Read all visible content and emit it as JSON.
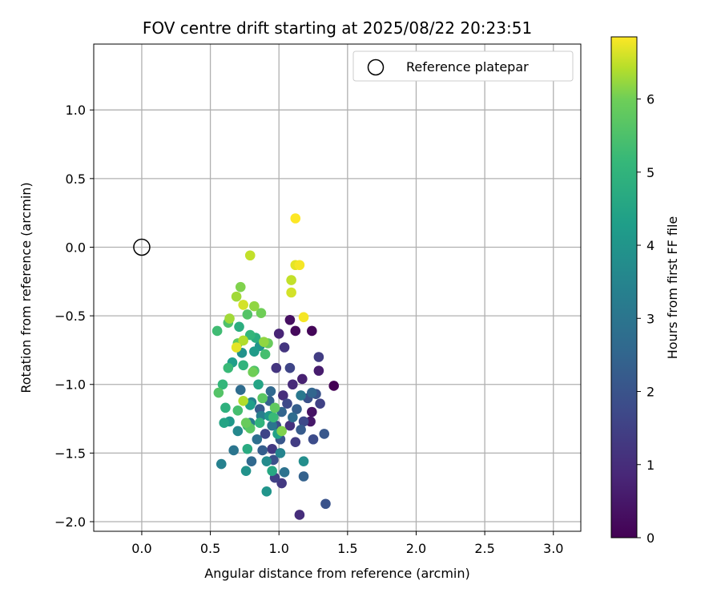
{
  "chart_data": {
    "type": "scatter",
    "title": "FOV centre drift starting at 2025/08/22 20:23:51",
    "xlabel": "Angular distance from reference (arcmin)",
    "ylabel": "Rotation from reference (arcmin)",
    "xlim": [
      -0.35,
      3.2
    ],
    "ylim": [
      -2.07,
      1.48
    ],
    "xticks": [
      0.0,
      0.5,
      1.0,
      1.5,
      2.0,
      2.5,
      3.0
    ],
    "xtick_labels": [
      "0.0",
      "0.5",
      "1.0",
      "1.5",
      "2.0",
      "2.5",
      "3.0"
    ],
    "yticks": [
      1.0,
      0.5,
      0.0,
      -0.5,
      -1.0,
      -1.5,
      -2.0
    ],
    "ytick_labels": [
      "1.0",
      "0.5",
      "0.0",
      "−0.5",
      "−1.0",
      "−1.5",
      "−2.0"
    ],
    "grid": true,
    "legend": {
      "position": "top-right",
      "entries": [
        {
          "label": "Reference platepar",
          "marker": "open-circle"
        }
      ]
    },
    "reference_point": {
      "x": 0.0,
      "y": 0.0
    },
    "colorbar": {
      "label": "Hours from first FF file",
      "colormap": "viridis",
      "range": [
        0,
        6.85
      ],
      "ticks": [
        0,
        1,
        2,
        3,
        4,
        5,
        6
      ],
      "tick_labels": [
        "0",
        "1",
        "2",
        "3",
        "4",
        "5",
        "6"
      ]
    },
    "series": [
      {
        "points": [
          {
            "x": 1.4,
            "y": -1.01,
            "h": 0.0
          },
          {
            "x": 1.24,
            "y": -0.61,
            "h": 0.1
          },
          {
            "x": 1.12,
            "y": -0.61,
            "h": 0.2
          },
          {
            "x": 1.08,
            "y": -0.53,
            "h": 0.3
          },
          {
            "x": 1.24,
            "y": -1.2,
            "h": 0.4
          },
          {
            "x": 1.23,
            "y": -1.27,
            "h": 0.5
          },
          {
            "x": 1.29,
            "y": -0.9,
            "h": 0.6
          },
          {
            "x": 1.17,
            "y": -0.96,
            "h": 0.7
          },
          {
            "x": 1.0,
            "y": -0.63,
            "h": 0.8
          },
          {
            "x": 1.1,
            "y": -1.0,
            "h": 0.9
          },
          {
            "x": 1.03,
            "y": -1.08,
            "h": 1.0
          },
          {
            "x": 1.15,
            "y": -1.95,
            "h": 1.0
          },
          {
            "x": 1.08,
            "y": -1.3,
            "h": 1.1
          },
          {
            "x": 0.98,
            "y": -0.88,
            "h": 1.2
          },
          {
            "x": 1.04,
            "y": -0.73,
            "h": 1.2
          },
          {
            "x": 1.02,
            "y": -1.72,
            "h": 1.3
          },
          {
            "x": 0.95,
            "y": -1.47,
            "h": 1.3
          },
          {
            "x": 1.12,
            "y": -1.42,
            "h": 1.4
          },
          {
            "x": 1.29,
            "y": -0.8,
            "h": 1.4
          },
          {
            "x": 0.97,
            "y": -1.68,
            "h": 1.5
          },
          {
            "x": 1.3,
            "y": -1.14,
            "h": 1.5
          },
          {
            "x": 0.9,
            "y": -1.36,
            "h": 1.6
          },
          {
            "x": 1.08,
            "y": -0.88,
            "h": 1.6
          },
          {
            "x": 1.18,
            "y": -1.27,
            "h": 1.7
          },
          {
            "x": 1.06,
            "y": -1.14,
            "h": 1.7
          },
          {
            "x": 0.98,
            "y": -1.3,
            "h": 1.8
          },
          {
            "x": 1.25,
            "y": -1.4,
            "h": 1.8
          },
          {
            "x": 1.21,
            "y": -1.1,
            "h": 1.9
          },
          {
            "x": 0.96,
            "y": -1.55,
            "h": 1.9
          },
          {
            "x": 1.34,
            "y": -1.87,
            "h": 2.0
          },
          {
            "x": 1.27,
            "y": -1.07,
            "h": 2.0
          },
          {
            "x": 1.01,
            "y": -1.4,
            "h": 2.1
          },
          {
            "x": 1.33,
            "y": -1.36,
            "h": 2.1
          },
          {
            "x": 0.86,
            "y": -1.18,
            "h": 2.2
          },
          {
            "x": 1.16,
            "y": -1.33,
            "h": 2.2
          },
          {
            "x": 1.13,
            "y": -1.18,
            "h": 2.3
          },
          {
            "x": 0.88,
            "y": -1.48,
            "h": 2.3
          },
          {
            "x": 0.93,
            "y": -1.12,
            "h": 2.4
          },
          {
            "x": 1.18,
            "y": -1.67,
            "h": 2.4
          },
          {
            "x": 1.24,
            "y": -1.06,
            "h": 2.5
          },
          {
            "x": 1.02,
            "y": -1.2,
            "h": 2.5
          },
          {
            "x": 0.8,
            "y": -1.56,
            "h": 2.6
          },
          {
            "x": 0.94,
            "y": -1.05,
            "h": 2.6
          },
          {
            "x": 1.1,
            "y": -1.24,
            "h": 2.7
          },
          {
            "x": 0.72,
            "y": -1.04,
            "h": 2.7
          },
          {
            "x": 0.84,
            "y": -1.4,
            "h": 2.8
          },
          {
            "x": 1.04,
            "y": -1.64,
            "h": 2.9
          },
          {
            "x": 0.67,
            "y": -1.48,
            "h": 3.0
          },
          {
            "x": 0.95,
            "y": -1.3,
            "h": 3.0
          },
          {
            "x": 1.16,
            "y": -1.08,
            "h": 3.1
          },
          {
            "x": 0.79,
            "y": -1.28,
            "h": 3.2
          },
          {
            "x": 0.87,
            "y": -1.23,
            "h": 3.3
          },
          {
            "x": 0.58,
            "y": -1.58,
            "h": 3.4
          },
          {
            "x": 0.8,
            "y": -1.13,
            "h": 3.4
          },
          {
            "x": 1.01,
            "y": -1.5,
            "h": 3.5
          },
          {
            "x": 0.7,
            "y": -1.34,
            "h": 3.6
          },
          {
            "x": 0.91,
            "y": -1.56,
            "h": 3.7
          },
          {
            "x": 1.18,
            "y": -1.56,
            "h": 3.8
          },
          {
            "x": 0.73,
            "y": -0.77,
            "h": 3.9
          },
          {
            "x": 0.76,
            "y": -1.63,
            "h": 3.9
          },
          {
            "x": 0.86,
            "y": -0.72,
            "h": 4.0
          },
          {
            "x": 0.91,
            "y": -1.78,
            "h": 4.0
          },
          {
            "x": 0.64,
            "y": -1.27,
            "h": 4.1
          },
          {
            "x": 0.93,
            "y": -1.23,
            "h": 4.1
          },
          {
            "x": 0.82,
            "y": -0.76,
            "h": 4.2
          },
          {
            "x": 0.66,
            "y": -0.84,
            "h": 4.3
          },
          {
            "x": 0.79,
            "y": -1.15,
            "h": 4.3
          },
          {
            "x": 0.99,
            "y": -1.36,
            "h": 4.4
          },
          {
            "x": 0.85,
            "y": -1.0,
            "h": 4.5
          },
          {
            "x": 0.6,
            "y": -1.28,
            "h": 4.5
          },
          {
            "x": 0.95,
            "y": -1.63,
            "h": 4.6
          },
          {
            "x": 0.77,
            "y": -1.47,
            "h": 4.7
          },
          {
            "x": 0.83,
            "y": -0.66,
            "h": 4.8
          },
          {
            "x": 0.71,
            "y": -0.58,
            "h": 4.8
          },
          {
            "x": 0.61,
            "y": -1.17,
            "h": 4.9
          },
          {
            "x": 0.74,
            "y": -0.86,
            "h": 5.0
          },
          {
            "x": 0.86,
            "y": -1.28,
            "h": 5.0
          },
          {
            "x": 0.59,
            "y": -1.0,
            "h": 5.1
          },
          {
            "x": 0.79,
            "y": -0.64,
            "h": 5.1
          },
          {
            "x": 0.96,
            "y": -1.24,
            "h": 5.2
          },
          {
            "x": 0.63,
            "y": -0.88,
            "h": 5.2
          },
          {
            "x": 0.77,
            "y": -1.3,
            "h": 5.3
          },
          {
            "x": 0.55,
            "y": -0.61,
            "h": 5.3
          },
          {
            "x": 0.7,
            "y": -1.19,
            "h": 5.4
          },
          {
            "x": 0.9,
            "y": -0.78,
            "h": 5.4
          },
          {
            "x": 0.63,
            "y": -0.55,
            "h": 5.5
          },
          {
            "x": 0.82,
            "y": -0.9,
            "h": 5.5
          },
          {
            "x": 0.56,
            "y": -1.06,
            "h": 5.6
          },
          {
            "x": 0.77,
            "y": -0.49,
            "h": 5.6
          },
          {
            "x": 0.88,
            "y": -1.1,
            "h": 5.7
          },
          {
            "x": 0.79,
            "y": -1.32,
            "h": 5.7
          },
          {
            "x": 0.97,
            "y": -1.17,
            "h": 5.8
          },
          {
            "x": 0.7,
            "y": -0.7,
            "h": 5.8
          },
          {
            "x": 0.92,
            "y": -0.7,
            "h": 5.9
          },
          {
            "x": 0.76,
            "y": -1.28,
            "h": 5.9
          },
          {
            "x": 0.81,
            "y": -0.91,
            "h": 6.0
          },
          {
            "x": 0.87,
            "y": -0.48,
            "h": 6.0
          },
          {
            "x": 1.02,
            "y": -1.34,
            "h": 6.1
          },
          {
            "x": 0.72,
            "y": -0.29,
            "h": 6.1
          },
          {
            "x": 0.82,
            "y": -0.43,
            "h": 6.2
          },
          {
            "x": 0.89,
            "y": -0.69,
            "h": 6.2
          },
          {
            "x": 0.64,
            "y": -0.52,
            "h": 6.3
          },
          {
            "x": 0.69,
            "y": -0.36,
            "h": 6.3
          },
          {
            "x": 0.74,
            "y": -0.68,
            "h": 6.4
          },
          {
            "x": 0.74,
            "y": -1.12,
            "h": 6.4
          },
          {
            "x": 0.79,
            "y": -0.06,
            "h": 6.5
          },
          {
            "x": 1.09,
            "y": -0.24,
            "h": 6.5
          },
          {
            "x": 0.74,
            "y": -0.42,
            "h": 6.6
          },
          {
            "x": 1.09,
            "y": -0.33,
            "h": 6.6
          },
          {
            "x": 0.69,
            "y": -0.73,
            "h": 6.7
          },
          {
            "x": 1.12,
            "y": -0.13,
            "h": 6.7
          },
          {
            "x": 1.15,
            "y": -0.13,
            "h": 6.8
          },
          {
            "x": 1.18,
            "y": -0.51,
            "h": 6.8
          },
          {
            "x": 1.12,
            "y": 0.21,
            "h": 6.85
          }
        ]
      }
    ]
  }
}
